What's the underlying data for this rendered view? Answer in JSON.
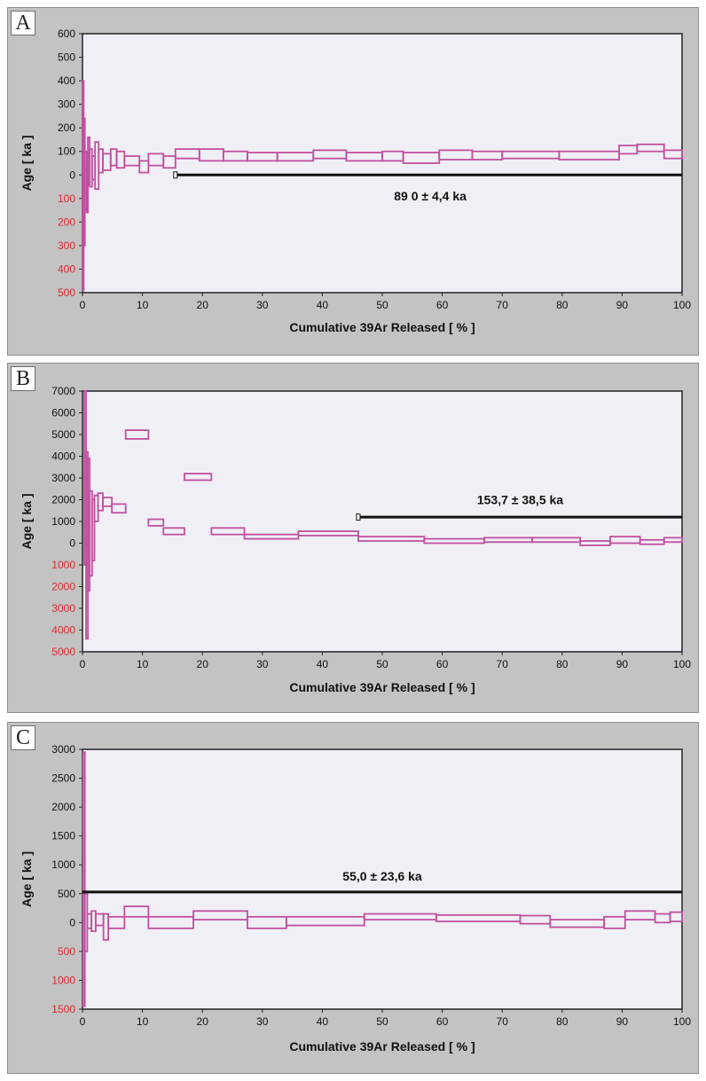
{
  "colors": {
    "step": "#c0509f",
    "plateau": "#111111",
    "neg_tick": "#e3262e",
    "pos_tick": "#111111",
    "plot_bg": "#f0eff5"
  },
  "chart_data": [
    {
      "panel_label": "A",
      "type": "line",
      "subtype": "age-spectrum",
      "xlabel": "Cumulative 39Ar Released [ % ]",
      "ylabel": "Age [ ka ]",
      "xlim": [
        0,
        100
      ],
      "ylim": [
        -500,
        600
      ],
      "x_ticks": [
        "0",
        "10",
        "20",
        "30",
        "40",
        "50",
        "60",
        "70",
        "80",
        "90",
        "100"
      ],
      "y_ticks": [
        {
          "v": 600,
          "label": "600"
        },
        {
          "v": 500,
          "label": "500"
        },
        {
          "v": 400,
          "label": "400"
        },
        {
          "v": 300,
          "label": "300"
        },
        {
          "v": 200,
          "label": "200"
        },
        {
          "v": 100,
          "label": "100"
        },
        {
          "v": 0,
          "label": "0"
        },
        {
          "v": -100,
          "label": "100",
          "neg": true
        },
        {
          "v": -200,
          "label": "200",
          "neg": true
        },
        {
          "v": -300,
          "label": "300",
          "neg": true
        },
        {
          "v": -400,
          "label": "400",
          "neg": true
        },
        {
          "v": -500,
          "label": "500",
          "neg": true
        }
      ],
      "plateau": {
        "x0": 15.5,
        "x1": 100,
        "y": 0,
        "label": "89 0 ± 4,4 ka",
        "label_x": 58,
        "label_y": -90
      },
      "steps": [
        {
          "x0": 0,
          "x1": 0.2,
          "lo": -490,
          "hi": 400
        },
        {
          "x0": 0.2,
          "x1": 0.4,
          "lo": -300,
          "hi": 240
        },
        {
          "x0": 0.4,
          "x1": 0.7,
          "lo": -150,
          "hi": 100
        },
        {
          "x0": 0.7,
          "x1": 0.9,
          "lo": -160,
          "hi": 40
        },
        {
          "x0": 0.9,
          "x1": 1.2,
          "lo": -40,
          "hi": 160
        },
        {
          "x0": 1.2,
          "x1": 1.6,
          "lo": -50,
          "hi": 110
        },
        {
          "x0": 1.6,
          "x1": 2.1,
          "lo": -20,
          "hi": 80
        },
        {
          "x0": 2.1,
          "x1": 2.7,
          "lo": -60,
          "hi": 140
        },
        {
          "x0": 2.7,
          "x1": 3.4,
          "lo": 10,
          "hi": 110
        },
        {
          "x0": 3.4,
          "x1": 4.7,
          "lo": 20,
          "hi": 90
        },
        {
          "x0": 4.7,
          "x1": 5.7,
          "lo": 40,
          "hi": 110
        },
        {
          "x0": 5.7,
          "x1": 7.0,
          "lo": 30,
          "hi": 100
        },
        {
          "x0": 7.0,
          "x1": 9.5,
          "lo": 40,
          "hi": 80
        },
        {
          "x0": 9.5,
          "x1": 11.0,
          "lo": 10,
          "hi": 60
        },
        {
          "x0": 11.0,
          "x1": 13.5,
          "lo": 40,
          "hi": 90
        },
        {
          "x0": 13.5,
          "x1": 15.5,
          "lo": 30,
          "hi": 80
        },
        {
          "x0": 15.5,
          "x1": 19.5,
          "lo": 70,
          "hi": 110
        },
        {
          "x0": 19.5,
          "x1": 23.5,
          "lo": 60,
          "hi": 110
        },
        {
          "x0": 23.5,
          "x1": 27.5,
          "lo": 60,
          "hi": 100
        },
        {
          "x0": 27.5,
          "x1": 32.5,
          "lo": 60,
          "hi": 95
        },
        {
          "x0": 32.5,
          "x1": 38.5,
          "lo": 60,
          "hi": 95
        },
        {
          "x0": 38.5,
          "x1": 44.0,
          "lo": 70,
          "hi": 105
        },
        {
          "x0": 44.0,
          "x1": 50.0,
          "lo": 60,
          "hi": 95
        },
        {
          "x0": 50.0,
          "x1": 53.5,
          "lo": 60,
          "hi": 100
        },
        {
          "x0": 53.5,
          "x1": 59.5,
          "lo": 50,
          "hi": 95
        },
        {
          "x0": 59.5,
          "x1": 65.0,
          "lo": 65,
          "hi": 105
        },
        {
          "x0": 65.0,
          "x1": 70.0,
          "lo": 65,
          "hi": 100
        },
        {
          "x0": 70.0,
          "x1": 79.5,
          "lo": 70,
          "hi": 100
        },
        {
          "x0": 79.5,
          "x1": 89.5,
          "lo": 65,
          "hi": 100
        },
        {
          "x0": 89.5,
          "x1": 92.5,
          "lo": 90,
          "hi": 125
        },
        {
          "x0": 92.5,
          "x1": 97.0,
          "lo": 100,
          "hi": 130
        },
        {
          "x0": 97.0,
          "x1": 100,
          "lo": 70,
          "hi": 105
        }
      ]
    },
    {
      "panel_label": "B",
      "type": "line",
      "subtype": "age-spectrum",
      "xlabel": "Cumulative 39Ar Released [ % ]",
      "ylabel": "Age [ ka ]",
      "xlim": [
        0,
        100
      ],
      "ylim": [
        -5000,
        7000
      ],
      "x_ticks": [
        "0",
        "10",
        "20",
        "30",
        "40",
        "50",
        "60",
        "70",
        "80",
        "90",
        "100"
      ],
      "y_ticks": [
        {
          "v": 7000,
          "label": "7000"
        },
        {
          "v": 6000,
          "label": "6000"
        },
        {
          "v": 5000,
          "label": "5000"
        },
        {
          "v": 4000,
          "label": "4000"
        },
        {
          "v": 3000,
          "label": "3000"
        },
        {
          "v": 2000,
          "label": "2000"
        },
        {
          "v": 1000,
          "label": "1000"
        },
        {
          "v": 0,
          "label": "0"
        },
        {
          "v": -1000,
          "label": "1000",
          "neg": true
        },
        {
          "v": -2000,
          "label": "2000",
          "neg": true
        },
        {
          "v": -3000,
          "label": "3000",
          "neg": true
        },
        {
          "v": -4000,
          "label": "4000",
          "neg": true
        },
        {
          "v": -5000,
          "label": "5000",
          "neg": true
        }
      ],
      "plateau": {
        "x0": 46,
        "x1": 100,
        "y": 1200,
        "label": "153,7 ± 38,5 ka",
        "label_x": 73,
        "label_y": 2000
      },
      "steps": [
        {
          "x0": 0.3,
          "x1": 0.6,
          "lo": -1000,
          "hi": 7000
        },
        {
          "x0": 0.6,
          "x1": 0.9,
          "lo": -4400,
          "hi": 4200
        },
        {
          "x0": 0.9,
          "x1": 1.2,
          "lo": -2200,
          "hi": 3900
        },
        {
          "x0": 1.2,
          "x1": 1.6,
          "lo": -1500,
          "hi": 2400
        },
        {
          "x0": 1.6,
          "x1": 2.0,
          "lo": -800,
          "hi": 2000
        },
        {
          "x0": 2.0,
          "x1": 2.6,
          "lo": 1000,
          "hi": 2200
        },
        {
          "x0": 2.6,
          "x1": 3.4,
          "lo": 1500,
          "hi": 2300
        },
        {
          "x0": 3.4,
          "x1": 4.9,
          "lo": 1700,
          "hi": 2100
        },
        {
          "x0": 4.9,
          "x1": 7.2,
          "lo": 1400,
          "hi": 1800
        },
        {
          "x0": 7.2,
          "x1": 11.0,
          "lo": 4800,
          "hi": 5200
        },
        {
          "x0": 11.0,
          "x1": 13.5,
          "lo": 800,
          "hi": 1100
        },
        {
          "x0": 13.5,
          "x1": 17.0,
          "lo": 400,
          "hi": 700
        },
        {
          "x0": 17.0,
          "x1": 21.5,
          "lo": 2900,
          "hi": 3200
        },
        {
          "x0": 21.5,
          "x1": 27.0,
          "lo": 400,
          "hi": 700
        },
        {
          "x0": 27.0,
          "x1": 36.0,
          "lo": 200,
          "hi": 400
        },
        {
          "x0": 36.0,
          "x1": 46.0,
          "lo": 350,
          "hi": 550
        },
        {
          "x0": 46.0,
          "x1": 57.0,
          "lo": 100,
          "hi": 300
        },
        {
          "x0": 57.0,
          "x1": 67.0,
          "lo": 0,
          "hi": 200
        },
        {
          "x0": 67.0,
          "x1": 75.0,
          "lo": 50,
          "hi": 250
        },
        {
          "x0": 75.0,
          "x1": 83.0,
          "lo": 50,
          "hi": 250
        },
        {
          "x0": 83.0,
          "x1": 88.0,
          "lo": -100,
          "hi": 100
        },
        {
          "x0": 88.0,
          "x1": 93.0,
          "lo": 0,
          "hi": 300
        },
        {
          "x0": 93.0,
          "x1": 97.0,
          "lo": -50,
          "hi": 150
        },
        {
          "x0": 97.0,
          "x1": 100,
          "lo": 50,
          "hi": 250
        }
      ]
    },
    {
      "panel_label": "C",
      "type": "line",
      "subtype": "age-spectrum",
      "xlabel": "Cumulative 39Ar Released [ % ]",
      "ylabel": "Age [ ka ]",
      "xlim": [
        0,
        100
      ],
      "ylim": [
        -1500,
        3000
      ],
      "x_ticks": [
        "0",
        "10",
        "20",
        "30",
        "40",
        "50",
        "60",
        "70",
        "80",
        "90",
        "100"
      ],
      "y_ticks": [
        {
          "v": 3000,
          "label": "3000"
        },
        {
          "v": 2500,
          "label": "2500"
        },
        {
          "v": 2000,
          "label": "2000"
        },
        {
          "v": 1500,
          "label": "1500"
        },
        {
          "v": 1000,
          "label": "1000"
        },
        {
          "v": 500,
          "label": "500"
        },
        {
          "v": 0,
          "label": "0"
        },
        {
          "v": -500,
          "label": "500",
          "neg": true
        },
        {
          "v": -1000,
          "label": "1000",
          "neg": true
        },
        {
          "v": -1500,
          "label": "1500",
          "neg": true
        }
      ],
      "plateau": {
        "x0": 0,
        "x1": 100,
        "y": 530,
        "label": "55,0 ± 23,6 ka",
        "label_x": 50,
        "label_y": 800
      },
      "steps": [
        {
          "x0": 0.1,
          "x1": 0.4,
          "lo": -1450,
          "hi": 2950
        },
        {
          "x0": 0.4,
          "x1": 0.8,
          "lo": -500,
          "hi": 500
        },
        {
          "x0": 0.8,
          "x1": 1.5,
          "lo": -100,
          "hi": 150
        },
        {
          "x0": 1.5,
          "x1": 2.2,
          "lo": -150,
          "hi": 200
        },
        {
          "x0": 2.2,
          "x1": 3.5,
          "lo": -50,
          "hi": 150
        },
        {
          "x0": 3.5,
          "x1": 4.3,
          "lo": -300,
          "hi": 150
        },
        {
          "x0": 4.3,
          "x1": 7.0,
          "lo": -100,
          "hi": 100
        },
        {
          "x0": 7.0,
          "x1": 11.0,
          "lo": 100,
          "hi": 280
        },
        {
          "x0": 11.0,
          "x1": 18.5,
          "lo": -100,
          "hi": 100
        },
        {
          "x0": 18.5,
          "x1": 27.5,
          "lo": 50,
          "hi": 200
        },
        {
          "x0": 27.5,
          "x1": 34.0,
          "lo": -100,
          "hi": 100
        },
        {
          "x0": 34.0,
          "x1": 47.0,
          "lo": -50,
          "hi": 100
        },
        {
          "x0": 47.0,
          "x1": 59.0,
          "lo": 50,
          "hi": 150
        },
        {
          "x0": 59.0,
          "x1": 73.0,
          "lo": 20,
          "hi": 130
        },
        {
          "x0": 73.0,
          "x1": 78.0,
          "lo": -20,
          "hi": 120
        },
        {
          "x0": 78.0,
          "x1": 87.0,
          "lo": -80,
          "hi": 50
        },
        {
          "x0": 87.0,
          "x1": 90.5,
          "lo": -100,
          "hi": 100
        },
        {
          "x0": 90.5,
          "x1": 95.5,
          "lo": 50,
          "hi": 200
        },
        {
          "x0": 95.5,
          "x1": 98.0,
          "lo": 0,
          "hi": 150
        },
        {
          "x0": 98.0,
          "x1": 100,
          "lo": 20,
          "hi": 180
        }
      ]
    }
  ]
}
